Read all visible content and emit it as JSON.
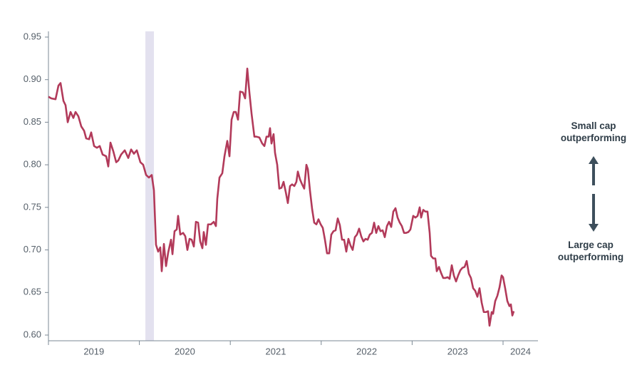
{
  "chart_data": {
    "type": "line",
    "annotations": [
      "Small cap outperforming",
      "Large cap outperforming"
    ],
    "xlim": [
      2019,
      2024.384
    ],
    "xticks": [
      2019,
      2020,
      2021,
      2022,
      2023,
      2024
    ],
    "ylim": [
      0.5933,
      0.9567
    ],
    "yticks": [
      {
        "value": 0.6,
        "label": "0.60"
      },
      0.65,
      {
        "value": 0.7,
        "label": "0.70"
      },
      0.75,
      {
        "value": 0.8,
        "label": "0.80"
      },
      0.85,
      {
        "value": 0.9,
        "label": "0.90"
      },
      0.95
    ],
    "grid": false,
    "shaded_region": {
      "x": [
        2020.066,
        2020.16
      ],
      "color": "#e3e1ef"
    },
    "series": [
      {
        "color": "#b23a5a",
        "x": [
          2019.0,
          2019.031,
          2019.078,
          2019.11,
          2019.133,
          2019.165,
          2019.188,
          2019.212,
          2019.243,
          2019.274,
          2019.298,
          2019.329,
          2019.361,
          2019.392,
          2019.415,
          2019.447,
          2019.47,
          2019.502,
          2019.533,
          2019.564,
          2019.596,
          2019.635,
          2019.658,
          2019.682,
          2019.713,
          2019.745,
          2019.768,
          2019.799,
          2019.839,
          2019.878,
          2019.909,
          2019.94,
          2019.972,
          2020.011,
          2020.042,
          2020.074,
          2020.105,
          2020.136,
          2020.16,
          2020.183,
          2020.207,
          2020.23,
          2020.246,
          2020.27,
          2020.293,
          2020.317,
          2020.348,
          2020.364,
          2020.387,
          2020.411,
          2020.426,
          2020.45,
          2020.481,
          2020.505,
          2020.528,
          2020.552,
          2020.575,
          2020.599,
          2020.622,
          2020.646,
          2020.669,
          2020.693,
          2020.708,
          2020.732,
          2020.755,
          2020.787,
          2020.818,
          2020.842,
          2020.857,
          2020.881,
          2020.912,
          2020.936,
          2020.967,
          2020.991,
          2021.014,
          2021.038,
          2021.061,
          2021.085,
          2021.108,
          2021.139,
          2021.163,
          2021.187,
          2021.21,
          2021.234,
          2021.265,
          2021.288,
          2021.32,
          2021.351,
          2021.375,
          2021.398,
          2021.422,
          2021.437,
          2021.453,
          2021.476,
          2021.492,
          2021.516,
          2021.539,
          2021.563,
          2021.586,
          2021.61,
          2021.633,
          2021.657,
          2021.68,
          2021.704,
          2021.727,
          2021.743,
          2021.766,
          2021.79,
          2021.813,
          2021.837,
          2021.853,
          2021.876,
          2021.9,
          2021.923,
          2021.947,
          2021.97,
          2021.994,
          2022.017,
          2022.041,
          2022.064,
          2022.088,
          2022.111,
          2022.135,
          2022.158,
          2022.182,
          2022.205,
          2022.229,
          2022.252,
          2022.276,
          2022.299,
          2022.323,
          2022.346,
          2022.37,
          2022.393,
          2022.417,
          2022.44,
          2022.464,
          2022.487,
          2022.511,
          2022.534,
          2022.558,
          2022.582,
          2022.605,
          2022.629,
          2022.652,
          2022.676,
          2022.699,
          2022.723,
          2022.746,
          2022.77,
          2022.793,
          2022.817,
          2022.84,
          2022.864,
          2022.887,
          2022.911,
          2022.934,
          2022.958,
          2022.981,
          2023.012,
          2023.036,
          2023.06,
          2023.083,
          2023.099,
          2023.122,
          2023.146,
          2023.169,
          2023.193,
          2023.208,
          2023.232,
          2023.255,
          2023.271,
          2023.295,
          2023.318,
          2023.342,
          2023.365,
          2023.389,
          2023.412,
          2023.436,
          2023.459,
          2023.483,
          2023.506,
          2023.53,
          2023.553,
          2023.577,
          2023.6,
          2023.624,
          2023.647,
          2023.671,
          2023.694,
          2023.718,
          2023.741,
          2023.765,
          2023.788,
          2023.812,
          2023.835,
          2023.851,
          2023.875,
          2023.89,
          2023.914,
          2023.937,
          2023.961,
          2023.984,
          2024.0,
          2024.023,
          2024.047,
          2024.07,
          2024.086,
          2024.102,
          2024.118
        ],
        "values": [
          0.88,
          0.878,
          0.877,
          0.893,
          0.896,
          0.875,
          0.87,
          0.85,
          0.862,
          0.855,
          0.862,
          0.857,
          0.845,
          0.84,
          0.831,
          0.83,
          0.838,
          0.822,
          0.82,
          0.822,
          0.812,
          0.81,
          0.798,
          0.826,
          0.816,
          0.803,
          0.805,
          0.812,
          0.817,
          0.808,
          0.818,
          0.813,
          0.817,
          0.803,
          0.8,
          0.788,
          0.785,
          0.788,
          0.77,
          0.706,
          0.698,
          0.703,
          0.675,
          0.707,
          0.681,
          0.697,
          0.712,
          0.695,
          0.722,
          0.724,
          0.74,
          0.718,
          0.72,
          0.716,
          0.7,
          0.713,
          0.712,
          0.704,
          0.733,
          0.732,
          0.71,
          0.702,
          0.721,
          0.706,
          0.73,
          0.73,
          0.733,
          0.728,
          0.76,
          0.785,
          0.79,
          0.81,
          0.828,
          0.81,
          0.853,
          0.862,
          0.862,
          0.853,
          0.886,
          0.885,
          0.878,
          0.913,
          0.885,
          0.86,
          0.833,
          0.833,
          0.832,
          0.825,
          0.822,
          0.833,
          0.833,
          0.843,
          0.825,
          0.836,
          0.814,
          0.8,
          0.772,
          0.773,
          0.78,
          0.768,
          0.755,
          0.775,
          0.777,
          0.775,
          0.78,
          0.792,
          0.783,
          0.777,
          0.772,
          0.8,
          0.795,
          0.77,
          0.748,
          0.732,
          0.73,
          0.736,
          0.73,
          0.726,
          0.712,
          0.696,
          0.696,
          0.718,
          0.722,
          0.723,
          0.737,
          0.729,
          0.712,
          0.712,
          0.698,
          0.713,
          0.705,
          0.7,
          0.715,
          0.718,
          0.725,
          0.716,
          0.71,
          0.713,
          0.712,
          0.718,
          0.72,
          0.732,
          0.72,
          0.728,
          0.722,
          0.723,
          0.715,
          0.728,
          0.733,
          0.727,
          0.745,
          0.749,
          0.738,
          0.732,
          0.728,
          0.72,
          0.72,
          0.721,
          0.724,
          0.74,
          0.738,
          0.74,
          0.75,
          0.738,
          0.747,
          0.745,
          0.745,
          0.72,
          0.693,
          0.69,
          0.69,
          0.675,
          0.68,
          0.673,
          0.667,
          0.667,
          0.668,
          0.666,
          0.682,
          0.67,
          0.663,
          0.67,
          0.676,
          0.679,
          0.68,
          0.687,
          0.672,
          0.667,
          0.655,
          0.652,
          0.645,
          0.655,
          0.638,
          0.627,
          0.627,
          0.628,
          0.611,
          0.627,
          0.625,
          0.64,
          0.646,
          0.656,
          0.67,
          0.668,
          0.655,
          0.64,
          0.634,
          0.636,
          0.623,
          0.628
        ]
      }
    ]
  }
}
